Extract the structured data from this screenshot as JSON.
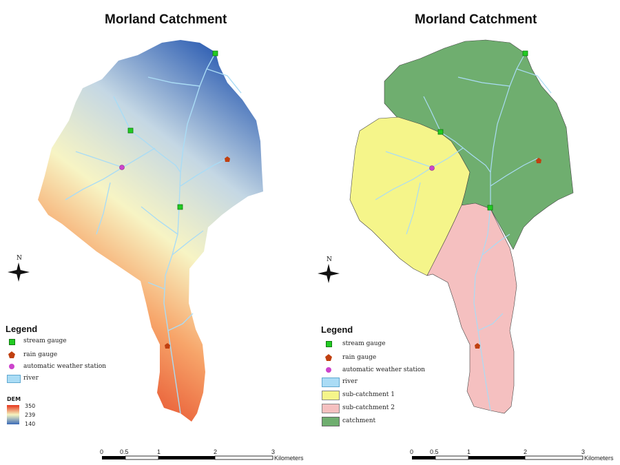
{
  "left_map": {
    "title": "Morland Catchment",
    "legend": {
      "title": "Legend",
      "items": [
        {
          "symbol": "green-square",
          "label": "stream gauge",
          "color": "#22cc22"
        },
        {
          "symbol": "pentagon",
          "label": "rain gauge",
          "color": "#c04010"
        },
        {
          "symbol": "circle",
          "label": "automatic weather station",
          "color": "#cc44cc"
        },
        {
          "symbol": "rect",
          "label": "river",
          "color": "#aadcf5"
        }
      ]
    },
    "dem": {
      "title": "DEM",
      "max": "350",
      "mid": "239",
      "min": "140",
      "color_high": "#e6331a",
      "color_mid": "#f5f5c0",
      "color_low": "#3a6ab8"
    },
    "north": "N",
    "scale": {
      "ticks": [
        "0",
        "0.5",
        "1",
        "2",
        "3"
      ],
      "unit": "Kilometers"
    }
  },
  "right_map": {
    "title": "Morland Catchment",
    "legend": {
      "title": "Legend",
      "items": [
        {
          "symbol": "green-square",
          "label": "stream gauge",
          "color": "#22cc22"
        },
        {
          "symbol": "pentagon",
          "label": "rain gauge",
          "color": "#c04010"
        },
        {
          "symbol": "circle",
          "label": "automatic weather station",
          "color": "#cc44cc"
        },
        {
          "symbol": "rect",
          "label": "river",
          "color": "#aadcf5"
        },
        {
          "symbol": "rect",
          "label": "sub-catchment 1",
          "color": "#f5f58a"
        },
        {
          "symbol": "rect",
          "label": "sub-catchment 2",
          "color": "#f5c0c0"
        },
        {
          "symbol": "rect",
          "label": "catchment",
          "color": "#6fae6f"
        }
      ]
    },
    "north": "N",
    "scale": {
      "ticks": [
        "0",
        "0.5",
        "1",
        "2",
        "3"
      ],
      "unit": "Kilometers"
    }
  }
}
